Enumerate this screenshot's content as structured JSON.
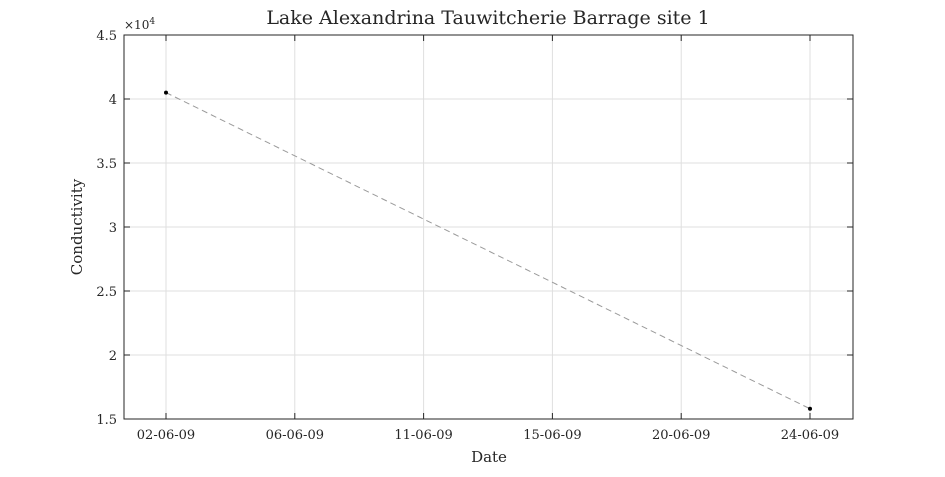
{
  "chart_data": {
    "type": "line",
    "title": "Lake Alexandrina Tauwitcherie Barrage site 1",
    "xlabel": "Date",
    "ylabel": "Conductivity",
    "y_exponent": {
      "base": "×10",
      "power": "4"
    },
    "x_tick_labels": [
      "02-06-09",
      "06-06-09",
      "11-06-09",
      "15-06-09",
      "20-06-09",
      "24-06-09"
    ],
    "y_tick_labels": [
      "1.5",
      "2",
      "2.5",
      "3",
      "3.5",
      "4",
      "4.5"
    ],
    "y_ticks": [
      15000,
      20000,
      25000,
      30000,
      35000,
      40000,
      45000
    ],
    "ylim": [
      15000,
      45000
    ],
    "grid": true,
    "series": [
      {
        "x": [
          "02-06-09",
          "24-06-09"
        ],
        "values": [
          40500,
          15800
        ],
        "line_style": "dashed",
        "line_color": "#9a9a9a",
        "marker_color": "#000000"
      }
    ]
  }
}
